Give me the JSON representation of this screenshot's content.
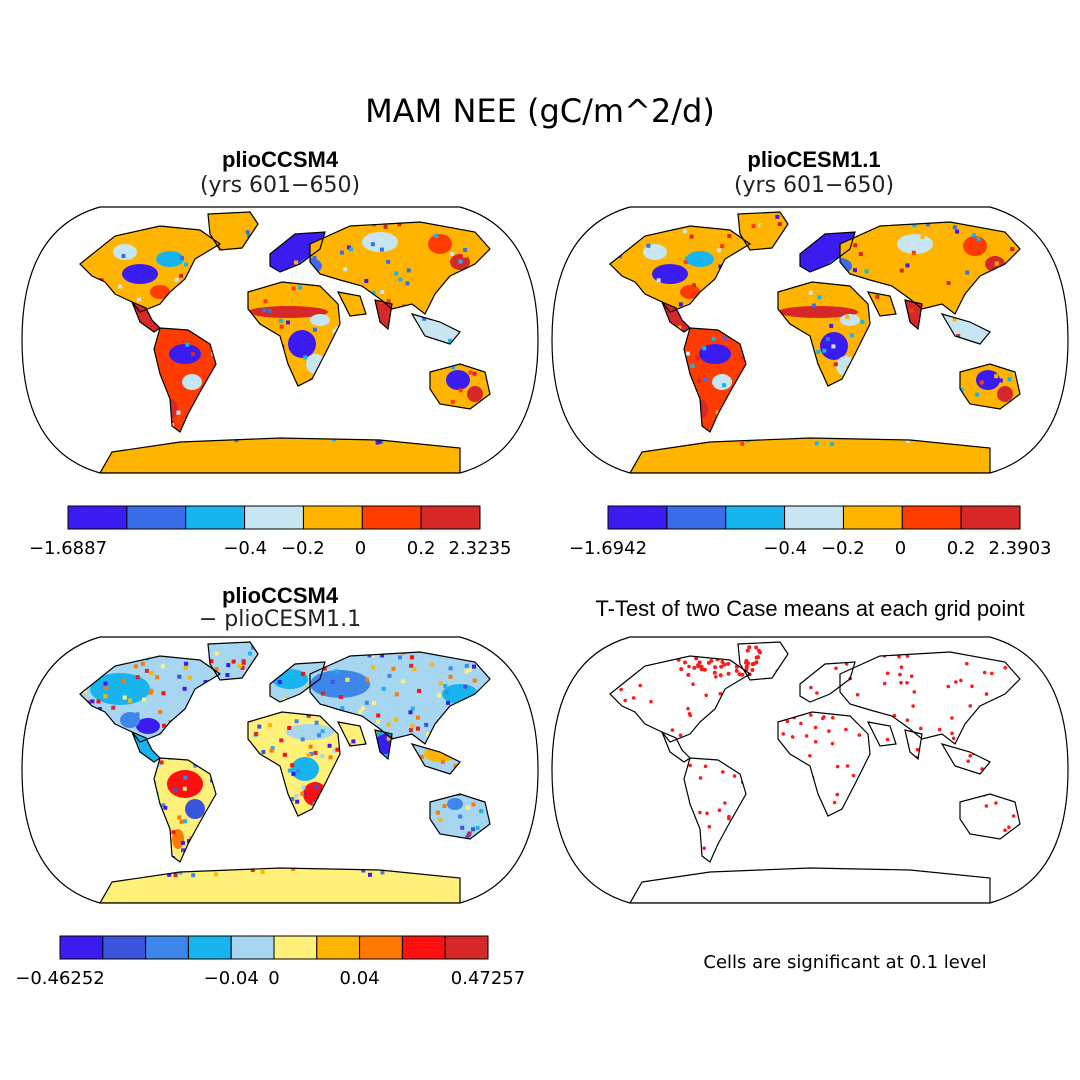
{
  "title": "MAM NEE (gC/m^2/d)",
  "panels": [
    {
      "id": "ccsm4",
      "title": "plioCCSM4",
      "subtitle": "(yrs 601−650)",
      "colorbar": {
        "colors": [
          "#3b1cf0",
          "#3a6ee8",
          "#17b4f0",
          "#c7e6f2",
          "#ffb400",
          "#ff3c00",
          "#d62828"
        ],
        "labels": [
          "−1.6887",
          "−0.4",
          "−0.2",
          "0",
          "0.2",
          "2.3235"
        ]
      }
    },
    {
      "id": "cesm",
      "title": "plioCESM1.1",
      "subtitle": "(yrs 601−650)",
      "colorbar": {
        "colors": [
          "#3b1cf0",
          "#3a6ee8",
          "#17b4f0",
          "#c7e6f2",
          "#ffb400",
          "#ff3c00",
          "#d62828"
        ],
        "labels": [
          "−1.6942",
          "−0.4",
          "−0.2",
          "0",
          "0.2",
          "2.3903"
        ]
      }
    },
    {
      "id": "diff",
      "title": "plioCCSM4",
      "subtitle": "− plioCESM1.1",
      "colorbar": {
        "colors": [
          "#3b1cf0",
          "#3a55dc",
          "#3f86ea",
          "#17b4f0",
          "#a6d6f0",
          "#fff07a",
          "#ffb400",
          "#ff7800",
          "#ff1010",
          "#d62828"
        ],
        "labels": [
          "−0.46252",
          "−0.04",
          "0",
          "0.04",
          "0.47257"
        ]
      }
    },
    {
      "id": "ttest",
      "title": "T-Test of two Case means at each grid point",
      "note": "Cells are significant at 0.1 level",
      "dot_color": "#ff1a1a"
    }
  ],
  "colors": {
    "background": "#ffffff",
    "coastline": "#000000",
    "significant": "#ff1a1a"
  }
}
